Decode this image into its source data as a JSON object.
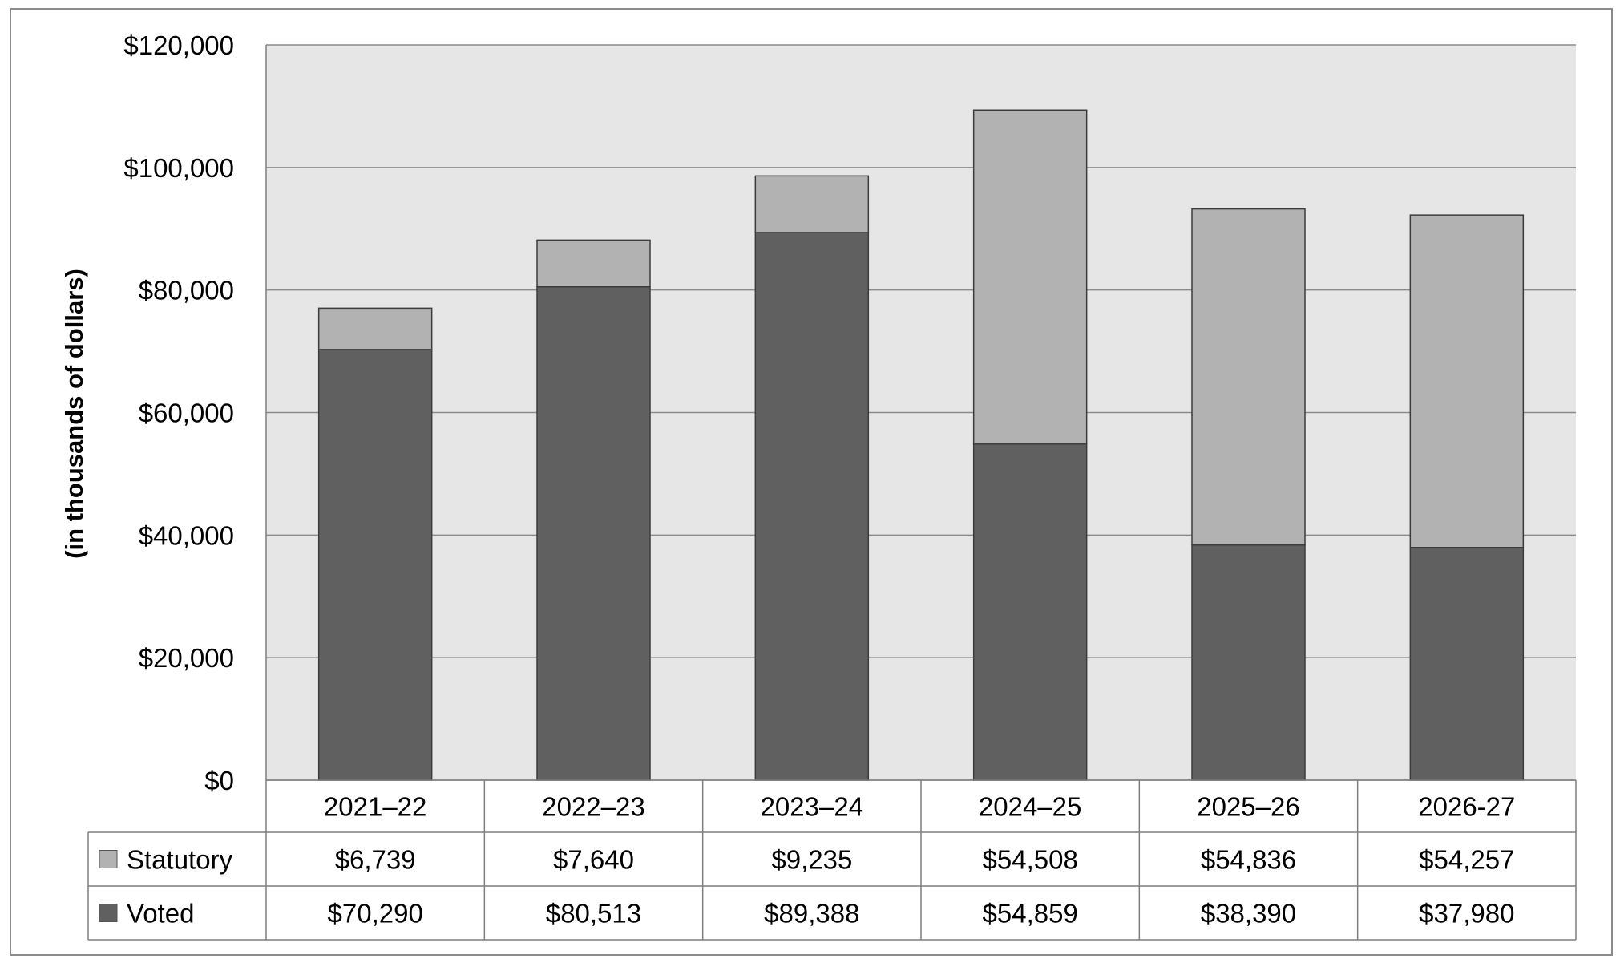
{
  "chart_data": {
    "type": "bar",
    "stacked": true,
    "categories": [
      "2021–22",
      "2022–23",
      "2023–24",
      "2024–25",
      "2025–26",
      "2026-27"
    ],
    "series": [
      {
        "name": "Voted",
        "color": "#606060",
        "values": [
          70290,
          80513,
          89388,
          54859,
          38390,
          37980
        ],
        "labels": [
          "$70,290",
          "$80,513",
          "$89,388",
          "$54,859",
          "$38,390",
          "$37,980"
        ]
      },
      {
        "name": "Statutory",
        "color": "#b2b2b2",
        "values": [
          6739,
          7640,
          9235,
          54508,
          54836,
          54257
        ],
        "labels": [
          "$6,739",
          "$7,640",
          "$9,235",
          "$54,508",
          "$54,836",
          "$54,257"
        ]
      }
    ],
    "table_row_order": [
      "Statutory",
      "Voted"
    ],
    "ylabel": "(in thousands of dollars)",
    "ylim": [
      0,
      120000
    ],
    "yticks": [
      0,
      20000,
      40000,
      60000,
      80000,
      100000,
      120000
    ],
    "ytick_labels": [
      "$0",
      "$20,000",
      "$40,000",
      "$60,000",
      "$80,000",
      "$100,000",
      "$120,000"
    ],
    "grid": true,
    "legend": "data-table",
    "plot_background": "#e6e6e6"
  }
}
